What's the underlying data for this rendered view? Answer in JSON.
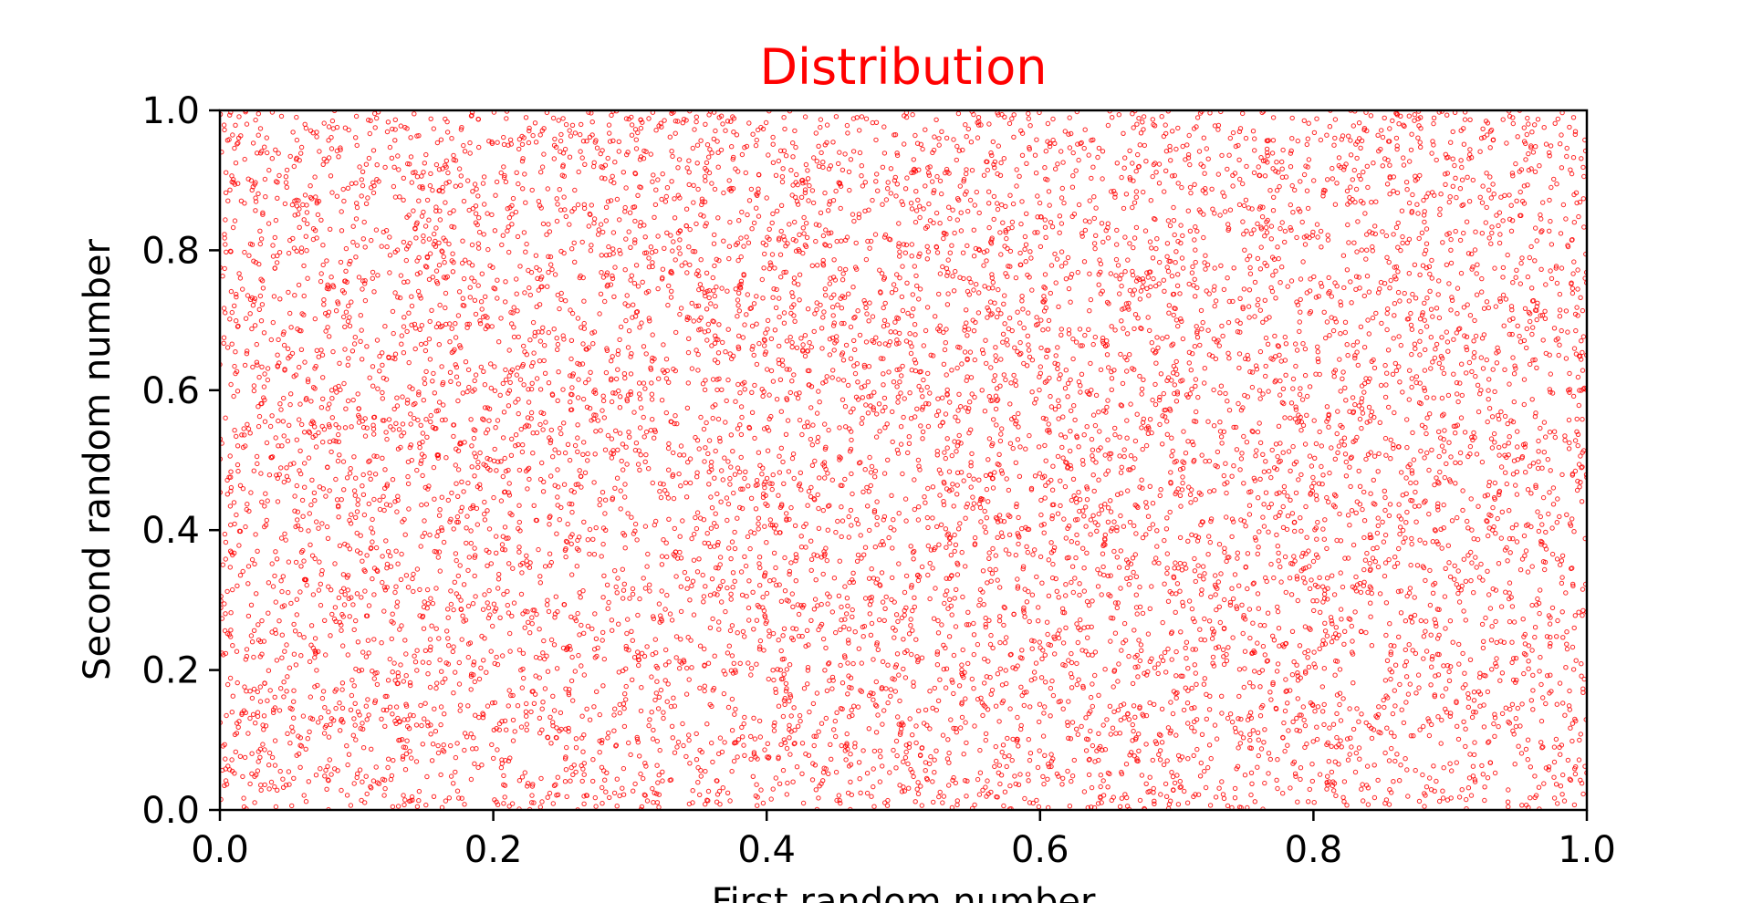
{
  "chart_data": {
    "type": "scatter",
    "title": "Distribution",
    "title_color": "#ff0000",
    "xlabel": "First random number",
    "ylabel": "Second random number",
    "xlim": [
      0.0,
      1.0
    ],
    "ylim": [
      0.0,
      1.0
    ],
    "xticks": [
      0.0,
      0.2,
      0.4,
      0.6,
      0.8,
      1.0
    ],
    "yticks": [
      0.0,
      0.2,
      0.4,
      0.6,
      0.8,
      1.0
    ],
    "xtick_labels": [
      "0.0",
      "0.2",
      "0.4",
      "0.6",
      "0.8",
      "1.0"
    ],
    "ytick_labels": [
      "0.0",
      "0.2",
      "0.4",
      "0.6",
      "0.8",
      "1.0"
    ],
    "grid": false,
    "legend": "none",
    "marker_color": "#ff0000",
    "marker_style": "hollow circle",
    "distribution": "uniform",
    "series": [
      {
        "x_range": [
          0.0,
          1.0
        ],
        "y_range": [
          0.0,
          1.0
        ]
      }
    ]
  }
}
